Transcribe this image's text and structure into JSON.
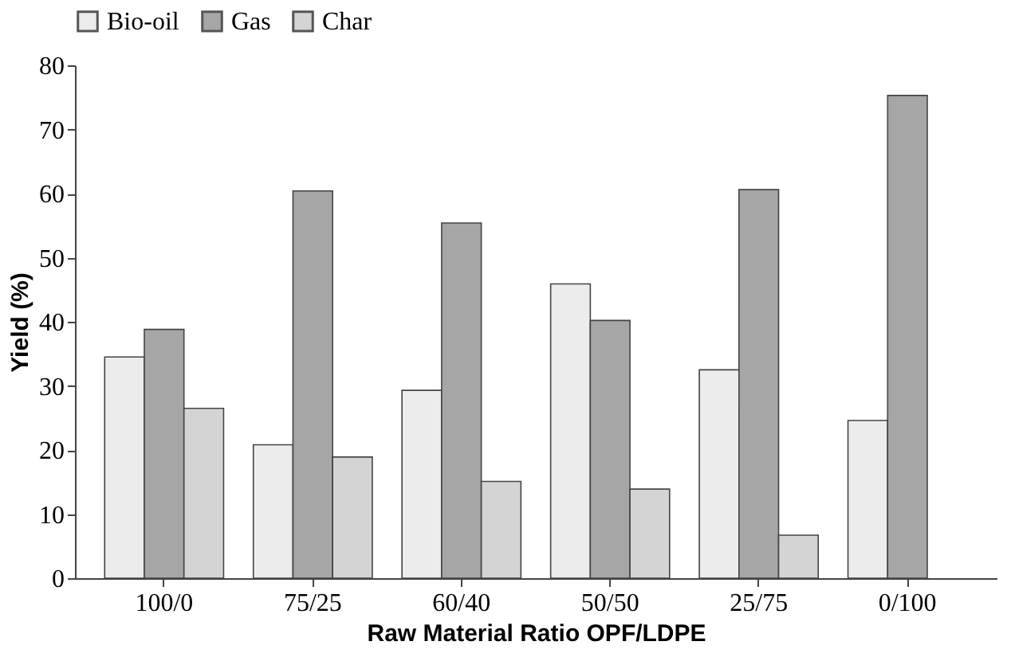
{
  "chart_data": {
    "type": "bar",
    "xlabel": "Raw Material Ratio OPF/LDPE",
    "ylabel": "Yield (%)",
    "categories": [
      "100/0",
      "75/25",
      "60/40",
      "50/50",
      "25/75",
      "0/100"
    ],
    "series": [
      {
        "name": "Bio-oil",
        "color": "#ececec",
        "values": [
          34.5,
          20.8,
          29.3,
          45.9,
          32.5,
          24.6
        ]
      },
      {
        "name": "Gas",
        "color": "#a6a6a6",
        "values": [
          38.8,
          60.4,
          55.4,
          40.2,
          60.6,
          75.3
        ]
      },
      {
        "name": "Char",
        "color": "#d4d4d4",
        "values": [
          26.5,
          18.9,
          15.1,
          13.9,
          6.7,
          null
        ]
      }
    ],
    "ylim": [
      0,
      80
    ],
    "yticks": [
      0,
      10,
      20,
      30,
      40,
      50,
      60,
      70,
      80
    ],
    "grid": false,
    "legend": "top"
  }
}
